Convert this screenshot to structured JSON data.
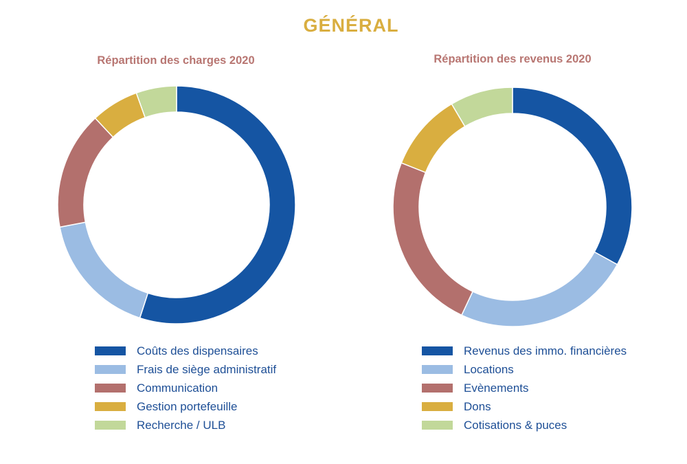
{
  "title": "GÉNÉRAL",
  "colors": {
    "title": "#d9ae40",
    "subtitle": "#b87672",
    "legend_text": "#1e4f96"
  },
  "chart_data": [
    {
      "type": "pie",
      "title": "Répartition des charges 2020",
      "donut": true,
      "legend_position": "bottom",
      "categories": [
        "Coûts des dispensaires",
        "Frais de siège administratif",
        "Communication",
        "Gestion portefeuille",
        "Recherche / ULB"
      ],
      "values": [
        55,
        17,
        16,
        6.5,
        5.5
      ],
      "unit": "%",
      "colors": [
        "#1555a3",
        "#9bbce3",
        "#b3706d",
        "#d9ae40",
        "#c2d89a"
      ]
    },
    {
      "type": "pie",
      "title": "Répartition des revenus 2020",
      "donut": true,
      "legend_position": "bottom",
      "categories": [
        "Revenus des immo. financières",
        "Locations",
        "Evènements",
        "Dons",
        "Cotisations & puces"
      ],
      "values": [
        33,
        24,
        24,
        10.5,
        8.5
      ],
      "unit": "%",
      "colors": [
        "#1555a3",
        "#9bbce3",
        "#b3706d",
        "#d9ae40",
        "#c2d89a"
      ]
    }
  ]
}
